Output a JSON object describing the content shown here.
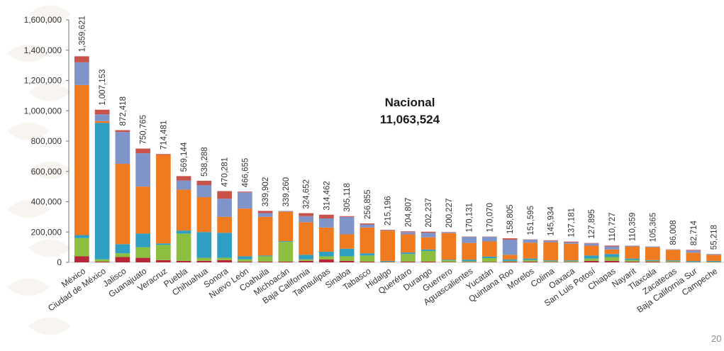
{
  "colors": {
    "background": "#ffffff",
    "watermark": "#f3ece4",
    "axis": "#777777",
    "text": "#333333",
    "segments": [
      "#b8263a",
      "#8cbf3f",
      "#2e9fc2",
      "#f07a20",
      "#7f95c9",
      "#c9534a"
    ]
  },
  "chart_data": {
    "type": "bar",
    "stacked": true,
    "ylim": [
      0,
      1600000
    ],
    "yticks": [
      0,
      200000,
      400000,
      600000,
      800000,
      1000000,
      1200000,
      1400000,
      1600000
    ],
    "ytick_labels": [
      "0",
      "200,000",
      "400,000",
      "600,000",
      "800,000",
      "1,000,000",
      "1,200,000",
      "1,400,000",
      "1,600,000"
    ],
    "grid": false,
    "total_title": "Nacional",
    "total_value": "11,063,524",
    "page_number": "20",
    "categories": [
      "México",
      "Ciudad de México",
      "Jalisco",
      "Guanajuato",
      "Veracruz",
      "Puebla",
      "Chihuahua",
      "Sonora",
      "Nuevo León",
      "Coahuila",
      "Michoacán",
      "Baja California",
      "Tamaulipas",
      "Sinaloa",
      "Tabasco",
      "Hidalgo",
      "Querétaro",
      "Durango",
      "Guerrero",
      "Aguascalientes",
      "Yucatán",
      "Quintana Roo",
      "Morelos",
      "Colima",
      "Oaxaca",
      "San Luis Potosí",
      "Chiapas",
      "Nayarit",
      "Tlaxcala",
      "Zacatecas",
      "Baja California Sur",
      "Campeche"
    ],
    "totals": [
      1359621,
      1007153,
      872418,
      750765,
      714481,
      569144,
      538288,
      470281,
      466655,
      339902,
      339260,
      324652,
      314462,
      305118,
      256855,
      215196,
      204807,
      202237,
      200227,
      170131,
      170070,
      158805,
      151595,
      145934,
      137181,
      127895,
      110727,
      110359,
      105365,
      86008,
      82714,
      55218
    ],
    "total_labels": [
      "1,359,621",
      "1,007,153",
      "872,418",
      "750,765",
      "714,481",
      "569,144",
      "538,288",
      "470,281",
      "466,655",
      "339,902",
      "339,260",
      "324,652",
      "314,462",
      "305,118",
      "256,855",
      "215,196",
      "204,807",
      "202,237",
      "200,227",
      "170,131",
      "170,070",
      "158,805",
      "151,595",
      "145,934",
      "137,181",
      "127,895",
      "110,727",
      "110,359",
      "105,365",
      "86,008",
      "82,714",
      "55,218"
    ],
    "series": [
      {
        "color": "#b8263a",
        "values": [
          40000,
          5000,
          35000,
          30000,
          15000,
          10000,
          10000,
          15000,
          5000,
          5000,
          5000,
          10000,
          20000,
          10000,
          5000,
          3000,
          5000,
          5000,
          3000,
          3000,
          3000,
          5000,
          5000,
          3000,
          3000,
          10000,
          10000,
          5000,
          5000,
          3000,
          2000,
          2000
        ]
      },
      {
        "color": "#8cbf3f",
        "values": [
          120000,
          15000,
          25000,
          70000,
          100000,
          180000,
          20000,
          15000,
          15000,
          35000,
          130000,
          10000,
          20000,
          30000,
          40000,
          2000,
          50000,
          70000,
          10000,
          5000,
          25000,
          5000,
          10000,
          5000,
          5000,
          15000,
          25000,
          10000,
          5000,
          5000,
          2000,
          3000
        ]
      },
      {
        "color": "#2e9fc2",
        "values": [
          20000,
          900000,
          60000,
          90000,
          10000,
          20000,
          170000,
          165000,
          20000,
          5000,
          5000,
          30000,
          30000,
          50000,
          15000,
          5000,
          10000,
          10000,
          5000,
          10000,
          10000,
          10000,
          10000,
          5000,
          5000,
          20000,
          20000,
          10000,
          5000,
          5000,
          5000,
          5000
        ]
      },
      {
        "color": "#f07a20",
        "values": [
          990000,
          12000,
          530000,
          310000,
          584000,
          270000,
          230000,
          105000,
          315000,
          255000,
          195000,
          215000,
          160000,
          95000,
          170000,
          200000,
          120000,
          80000,
          175000,
          110000,
          100000,
          30000,
          105000,
          120000,
          110000,
          65000,
          30000,
          80000,
          85000,
          70000,
          55000,
          40000
        ]
      },
      {
        "color": "#7f95c9",
        "values": [
          150000,
          45000,
          210000,
          220000,
          0,
          60000,
          80000,
          120000,
          106655,
          25000,
          4260,
          40000,
          60000,
          115000,
          20000,
          3000,
          15000,
          30000,
          5000,
          40000,
          30000,
          100000,
          20000,
          10000,
          10000,
          15000,
          20000,
          5000,
          5000,
          3000,
          15000,
          5000
        ]
      },
      {
        "color": "#c9534a",
        "values": [
          39621,
          30153,
          12418,
          30765,
          5481,
          29144,
          28288,
          50281,
          5000,
          14902,
          0,
          19652,
          24462,
          5118,
          6855,
          2196,
          4807,
          7237,
          2227,
          2131,
          2070,
          8805,
          1595,
          2934,
          4181,
          2895,
          5727,
          359,
          365,
          8,
          3714,
          218
        ]
      }
    ]
  }
}
